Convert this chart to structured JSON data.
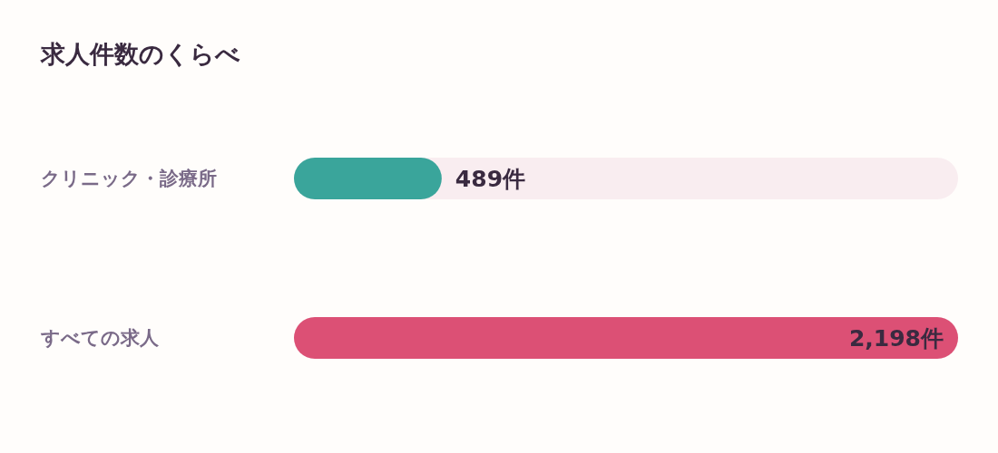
{
  "chart_data": {
    "type": "bar",
    "orientation": "horizontal",
    "title": "求人件数のくらべ",
    "categories": [
      "クリニック・診療所",
      "すべての求人"
    ],
    "values": [
      489,
      2198
    ],
    "colors": [
      "#3aa59b",
      "#dc5075"
    ],
    "value_labels": [
      "489件",
      "2,198件"
    ]
  }
}
